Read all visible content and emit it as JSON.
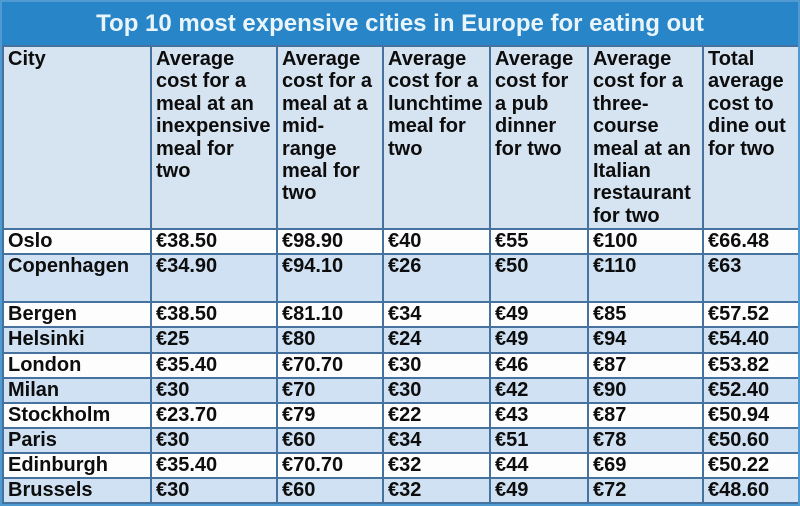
{
  "title": "Top 10 most expensive cities in Europe for eating out",
  "colors": {
    "title_bar_background": "#2886c8",
    "title_text": "#e9f4fb",
    "header_row_background": "#d6e3f1",
    "alt_row_background": "#cfe1f2",
    "plain_row_background": "#fdfdfd",
    "grid_border": "#46729f",
    "outer_border": "#4f9bd1",
    "cell_text": "#0d0d0d"
  },
  "chart_data": {
    "type": "table",
    "title": "Top 10 most expensive cities in Europe for eating out",
    "columns": [
      "City",
      "Average cost for a meal at an inexpensive meal for two",
      "Average cost for a meal at a mid-range meal for two",
      "Average cost for a lunchtime meal for two",
      "Average cost for a pub dinner for two",
      "Average cost for a three-course meal at an Italian restaurant for two",
      "Total average cost to dine out for two"
    ],
    "rows": [
      [
        "Oslo",
        "€38.50",
        "€98.90",
        "€40",
        "€55",
        "€100",
        "€66.48"
      ],
      [
        "Copenhagen",
        "€34.90",
        "€94.10",
        "€26",
        "€50",
        "€110",
        "€63"
      ],
      [
        "Bergen",
        "€38.50",
        "€81.10",
        "€34",
        "€49",
        "€85",
        "€57.52"
      ],
      [
        "Helsinki",
        "€25",
        "€80",
        "€24",
        "€49",
        "€94",
        "€54.40"
      ],
      [
        "London",
        "€35.40",
        "€70.70",
        "€30",
        "€46",
        "€87",
        "€53.82"
      ],
      [
        "Milan",
        "€30",
        "€70",
        "€30",
        "€42",
        "€90",
        "€52.40"
      ],
      [
        "Stockholm",
        "€23.70",
        "€79",
        "€22",
        "€43",
        "€87",
        "€50.94"
      ],
      [
        "Paris",
        "€30",
        "€60",
        "€34",
        "€51",
        "€78",
        "€50.60"
      ],
      [
        "Edinburgh",
        "€35.40",
        "€70.70",
        "€32",
        "€44",
        "€69",
        "€50.22"
      ],
      [
        "Brussels",
        "€30",
        "€60",
        "€32",
        "€49",
        "€72",
        "€48.60"
      ]
    ]
  }
}
